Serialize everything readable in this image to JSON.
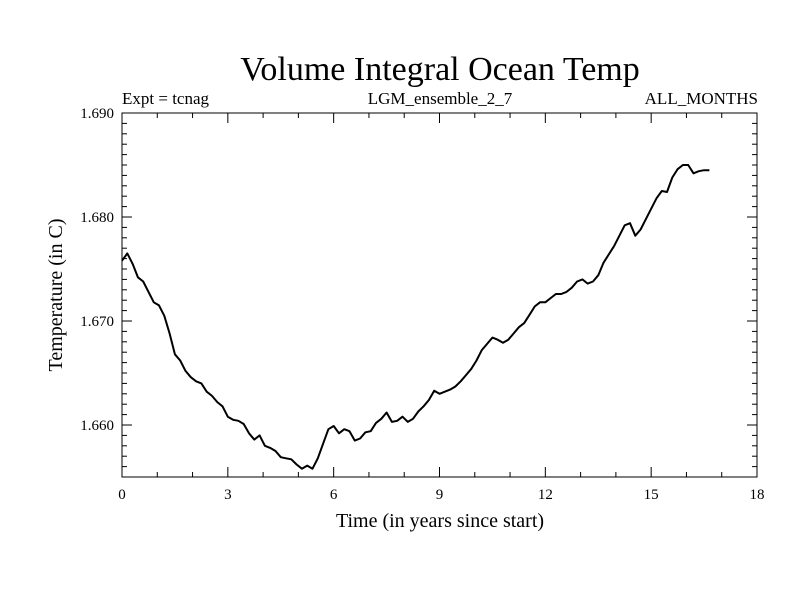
{
  "chart_data": {
    "type": "line",
    "title": "Volume Integral Ocean Temp",
    "subtitle_left": "Expt = tcnag",
    "subtitle_center": "LGM_ensemble_2_7",
    "subtitle_right": "ALL_MONTHS",
    "xlabel": "Time (in years since start)",
    "ylabel": "Temperature (in C)",
    "xlim": [
      0,
      18
    ],
    "ylim": [
      1.655,
      1.69
    ],
    "x_ticks": [
      0,
      3,
      6,
      9,
      12,
      15,
      18
    ],
    "x_tick_labels": [
      "0",
      "3",
      "6",
      "9",
      "12",
      "15",
      "18"
    ],
    "y_ticks": [
      1.66,
      1.67,
      1.68,
      1.69
    ],
    "y_tick_labels": [
      "1.660",
      "1.670",
      "1.680",
      "1.690"
    ],
    "grid": false,
    "series": [
      {
        "name": "Volume Integral Ocean Temp",
        "color": "#000000",
        "x": [
          0.0,
          0.15,
          0.3,
          0.45,
          0.6,
          0.75,
          0.9,
          1.05,
          1.2,
          1.35,
          1.5,
          1.65,
          1.8,
          1.95,
          2.1,
          2.25,
          2.4,
          2.55,
          2.7,
          2.85,
          3.0,
          3.15,
          3.3,
          3.45,
          3.6,
          3.75,
          3.9,
          4.05,
          4.2,
          4.35,
          4.5,
          4.65,
          4.8,
          4.95,
          5.1,
          5.25,
          5.4,
          5.55,
          5.7,
          5.85,
          6.0,
          6.15,
          6.3,
          6.45,
          6.6,
          6.75,
          6.9,
          7.05,
          7.2,
          7.35,
          7.5,
          7.65,
          7.8,
          7.95,
          8.1,
          8.25,
          8.4,
          8.55,
          8.7,
          8.85,
          9.0,
          9.15,
          9.3,
          9.45,
          9.6,
          9.75,
          9.9,
          10.05,
          10.2,
          10.35,
          10.5,
          10.65,
          10.8,
          10.95,
          11.1,
          11.25,
          11.4,
          11.55,
          11.7,
          11.85,
          12.0,
          12.15,
          12.3,
          12.45,
          12.6,
          12.75,
          12.9,
          13.05,
          13.2,
          13.35,
          13.5,
          13.65,
          13.8,
          13.95,
          14.1,
          14.25,
          14.4,
          14.55,
          14.7,
          14.85,
          15.0,
          15.15,
          15.3,
          15.45,
          15.6,
          15.75,
          15.9,
          16.05,
          16.2,
          16.35,
          16.5,
          16.65
        ],
        "y": [
          1.6758,
          1.6765,
          1.6755,
          1.6742,
          1.6738,
          1.6728,
          1.6718,
          1.6715,
          1.6705,
          1.6688,
          1.6668,
          1.6662,
          1.6652,
          1.6646,
          1.6642,
          1.664,
          1.6632,
          1.6628,
          1.6622,
          1.6618,
          1.6608,
          1.6605,
          1.6604,
          1.6601,
          1.6592,
          1.6586,
          1.659,
          1.658,
          1.6578,
          1.6575,
          1.6569,
          1.6568,
          1.6567,
          1.6562,
          1.6558,
          1.6561,
          1.6558,
          1.6568,
          1.6582,
          1.6596,
          1.6599,
          1.6592,
          1.6596,
          1.6594,
          1.6585,
          1.6587,
          1.6593,
          1.6594,
          1.6602,
          1.6606,
          1.6612,
          1.6603,
          1.6604,
          1.6608,
          1.6603,
          1.6606,
          1.6613,
          1.6618,
          1.6624,
          1.6633,
          1.663,
          1.6632,
          1.6634,
          1.6637,
          1.6642,
          1.6648,
          1.6654,
          1.6662,
          1.6672,
          1.6678,
          1.6684,
          1.6682,
          1.6679,
          1.6682,
          1.6688,
          1.6694,
          1.6698,
          1.6706,
          1.6714,
          1.6718,
          1.6718,
          1.6722,
          1.6726,
          1.6726,
          1.6728,
          1.6732,
          1.6738,
          1.674,
          1.6736,
          1.6738,
          1.6744,
          1.6756,
          1.6764,
          1.6772,
          1.6782,
          1.6792,
          1.6794,
          1.6782,
          1.6788,
          1.6798,
          1.6808,
          1.6818,
          1.6825,
          1.6824,
          1.6838,
          1.6846,
          1.685,
          1.685,
          1.6842,
          1.6844,
          1.6845,
          1.6845
        ]
      }
    ]
  }
}
